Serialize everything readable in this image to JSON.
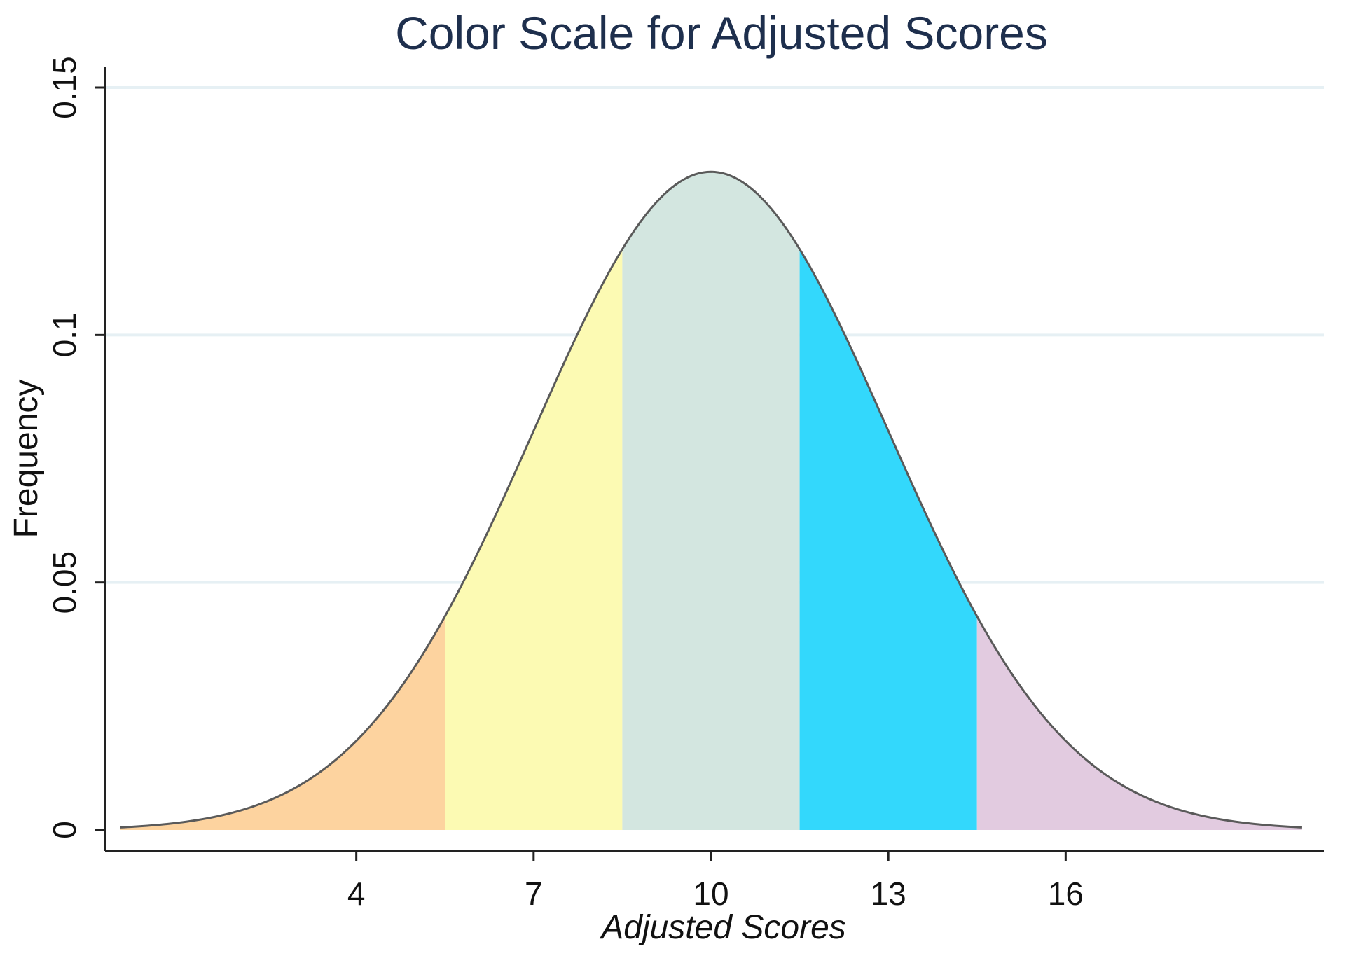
{
  "chart_data": {
    "type": "area",
    "title": "Color Scale for Adjusted Scores",
    "xlabel": "Adjusted Scores",
    "ylabel": "Frequency",
    "xlim": [
      -0.25,
      20.25
    ],
    "ylim": [
      0,
      0.15
    ],
    "x_ticks": [
      "4",
      "7",
      "10",
      "13",
      "16"
    ],
    "y_ticks": [
      "0",
      "0.05",
      "0.1",
      "0.15"
    ],
    "grid": true,
    "legend": "none",
    "curve": {
      "distribution": "normal",
      "mean": 10,
      "sd": 3,
      "x_start": 0,
      "x_end": 20
    },
    "bands": [
      {
        "from": 0,
        "to": 5.5,
        "color": "#fdd39f"
      },
      {
        "from": 5.5,
        "to": 8.5,
        "color": "#fcfab3"
      },
      {
        "from": 8.5,
        "to": 11.5,
        "color": "#d3e6e0"
      },
      {
        "from": 11.5,
        "to": 14.5,
        "color": "#33d8fc"
      },
      {
        "from": 14.5,
        "to": 20,
        "color": "#e2cbe0"
      }
    ]
  }
}
